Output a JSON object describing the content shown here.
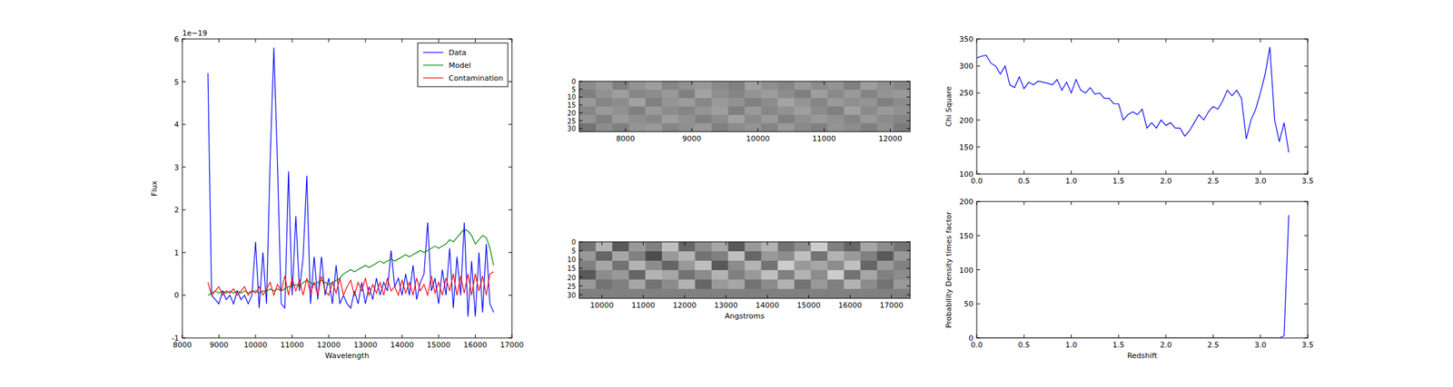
{
  "chart_data": [
    {
      "type": "line",
      "xlabel": "Wavelength",
      "ylabel": "Flux",
      "offset_text": "1e−19",
      "x": [
        8700,
        8800,
        8900,
        9000,
        9100,
        9200,
        9300,
        9400,
        9500,
        9600,
        9700,
        9800,
        9900,
        10000,
        10100,
        10200,
        10300,
        10400,
        10500,
        10600,
        10700,
        10800,
        10900,
        11000,
        11100,
        11200,
        11300,
        11400,
        11500,
        11600,
        11700,
        11800,
        11900,
        12000,
        12100,
        12200,
        12300,
        12400,
        12500,
        12600,
        12700,
        12800,
        12900,
        13000,
        13100,
        13200,
        13300,
        13400,
        13500,
        13600,
        13700,
        13800,
        13900,
        14000,
        14100,
        14200,
        14300,
        14400,
        14500,
        14600,
        14700,
        14800,
        14900,
        15000,
        15100,
        15200,
        15300,
        15400,
        15500,
        15600,
        15700,
        15800,
        15900,
        16000,
        16100,
        16200,
        16300,
        16400,
        16500
      ],
      "series": [
        {
          "name": "Data",
          "color": "#0000ff",
          "values": [
            5.2,
            0.0,
            -0.1,
            -0.2,
            0.1,
            -0.1,
            0.0,
            -0.2,
            0.1,
            -0.1,
            0.0,
            -0.2,
            0.0,
            1.25,
            -0.3,
            1.0,
            -0.2,
            3.2,
            5.8,
            3.05,
            -0.2,
            -0.3,
            2.9,
            0.0,
            1.85,
            0.1,
            0.9,
            2.8,
            -0.2,
            0.9,
            -0.1,
            0.9,
            0.0,
            0.4,
            -0.2,
            0.7,
            -0.2,
            0.0,
            -0.2,
            -0.3,
            0.1,
            -0.2,
            0.3,
            -0.2,
            0.2,
            -0.1,
            0.4,
            0.0,
            0.3,
            0.1,
            1.05,
            0.2,
            0.4,
            0.0,
            0.5,
            0.0,
            0.7,
            -0.1,
            0.3,
            0.5,
            1.7,
            0.1,
            0.4,
            -0.2,
            0.6,
            0.0,
            1.1,
            -0.3,
            0.9,
            0.0,
            1.7,
            -0.5,
            0.8,
            -0.5,
            1.0,
            -0.4,
            1.2,
            -0.2,
            -0.4
          ]
        },
        {
          "name": "Model",
          "color": "#008000",
          "values": [
            0.0,
            0.05,
            0.1,
            0.05,
            0.1,
            0.05,
            0.1,
            0.05,
            0.1,
            0.05,
            0.1,
            0.05,
            0.1,
            0.1,
            0.05,
            0.1,
            0.1,
            0.15,
            0.1,
            0.15,
            0.1,
            0.15,
            0.2,
            0.2,
            0.25,
            0.2,
            0.3,
            0.35,
            0.3,
            0.25,
            0.3,
            0.35,
            0.3,
            0.25,
            0.3,
            0.35,
            0.4,
            0.5,
            0.55,
            0.6,
            0.55,
            0.6,
            0.65,
            0.7,
            0.65,
            0.7,
            0.75,
            0.8,
            0.75,
            0.8,
            0.85,
            0.8,
            0.85,
            0.9,
            0.95,
            0.9,
            0.95,
            1.0,
            1.05,
            1.0,
            1.05,
            1.1,
            1.15,
            1.1,
            1.15,
            1.2,
            1.3,
            1.25,
            1.35,
            1.45,
            1.55,
            1.5,
            1.4,
            1.2,
            1.3,
            1.4,
            1.35,
            1.1,
            0.7
          ]
        },
        {
          "name": "Contamination",
          "color": "#ff0000",
          "values": [
            0.3,
            0.0,
            0.1,
            0.2,
            0.0,
            0.1,
            0.05,
            0.15,
            0.0,
            0.1,
            0.2,
            0.0,
            0.1,
            0.05,
            0.2,
            0.0,
            0.15,
            0.3,
            0.0,
            0.25,
            0.1,
            0.45,
            0.0,
            0.4,
            0.1,
            0.35,
            0.0,
            0.4,
            0.05,
            0.3,
            0.0,
            0.45,
            0.1,
            0.0,
            0.3,
            0.05,
            0.4,
            0.0,
            0.2,
            0.35,
            0.0,
            0.3,
            0.1,
            0.4,
            0.0,
            0.25,
            0.05,
            0.3,
            0.0,
            0.4,
            0.1,
            0.2,
            0.0,
            0.35,
            0.05,
            0.3,
            0.0,
            0.4,
            0.1,
            0.25,
            0.0,
            0.45,
            0.05,
            0.3,
            0.0,
            0.4,
            0.1,
            0.5,
            0.0,
            0.45,
            0.05,
            0.5,
            0.0,
            0.5,
            0.1,
            0.45,
            0.0,
            0.5,
            0.55
          ]
        }
      ],
      "xlim": [
        8000,
        17000
      ],
      "xticks": [
        8000,
        9000,
        10000,
        11000,
        12000,
        13000,
        14000,
        15000,
        16000,
        17000
      ],
      "ylim": [
        -1,
        6
      ],
      "yticks": [
        -1,
        0,
        1,
        2,
        3,
        4,
        5,
        6
      ],
      "legend": "upper right"
    },
    {
      "type": "heatmap",
      "cells": [
        [
          0.55,
          0.6,
          0.5,
          0.58,
          0.62,
          0.52,
          0.57,
          0.6,
          0.54,
          0.5,
          0.63,
          0.56,
          0.52,
          0.6,
          0.55,
          0.58,
          0.5,
          0.62,
          0.57,
          0.53
        ],
        [
          0.5,
          0.57,
          0.62,
          0.53,
          0.55,
          0.6,
          0.5,
          0.64,
          0.56,
          0.52,
          0.58,
          0.61,
          0.55,
          0.5,
          0.62,
          0.54,
          0.6,
          0.52,
          0.58,
          0.6
        ],
        [
          0.6,
          0.52,
          0.55,
          0.63,
          0.5,
          0.58,
          0.61,
          0.53,
          0.6,
          0.57,
          0.5,
          0.55,
          0.64,
          0.58,
          0.52,
          0.6,
          0.56,
          0.58,
          0.5,
          0.55
        ],
        [
          0.53,
          0.6,
          0.57,
          0.5,
          0.6,
          0.55,
          0.52,
          0.58,
          0.62,
          0.5,
          0.6,
          0.53,
          0.57,
          0.62,
          0.55,
          0.5,
          0.63,
          0.54,
          0.6,
          0.57
        ],
        [
          0.58,
          0.5,
          0.6,
          0.56,
          0.53,
          0.62,
          0.57,
          0.5,
          0.55,
          0.63,
          0.54,
          0.6,
          0.5,
          0.56,
          0.6,
          0.57,
          0.52,
          0.6,
          0.55,
          0.52
        ],
        [
          0.45,
          0.55,
          0.5,
          0.58,
          0.6,
          0.52,
          0.56,
          0.6,
          0.5,
          0.55,
          0.58,
          0.52,
          0.6,
          0.54,
          0.5,
          0.58,
          0.55,
          0.5,
          0.57,
          0.48
        ]
      ],
      "xlim": [
        7300,
        12300
      ],
      "xticks": [
        8000,
        9000,
        10000,
        11000,
        12000
      ],
      "ylim": [
        32,
        0
      ],
      "yticks": [
        0,
        5,
        10,
        15,
        20,
        25,
        30
      ]
    },
    {
      "type": "heatmap",
      "xlabel": "Angstroms",
      "cells": [
        [
          0.45,
          0.7,
          0.35,
          0.6,
          0.5,
          0.75,
          0.4,
          0.55,
          0.65,
          0.35,
          0.6,
          0.7,
          0.45,
          0.55,
          0.8,
          0.5,
          0.4,
          0.65,
          0.55,
          0.45
        ],
        [
          0.6,
          0.4,
          0.65,
          0.5,
          0.3,
          0.6,
          0.7,
          0.45,
          0.5,
          0.75,
          0.4,
          0.6,
          0.55,
          0.75,
          0.45,
          0.7,
          0.6,
          0.5,
          0.35,
          0.6
        ],
        [
          0.5,
          0.65,
          0.45,
          0.7,
          0.55,
          0.4,
          0.6,
          0.75,
          0.35,
          0.55,
          0.7,
          0.45,
          0.8,
          0.6,
          0.65,
          0.55,
          0.75,
          0.4,
          0.6,
          0.5
        ],
        [
          0.35,
          0.55,
          0.6,
          0.4,
          0.7,
          0.65,
          0.45,
          0.55,
          0.7,
          0.5,
          0.6,
          0.75,
          0.5,
          0.7,
          0.55,
          0.8,
          0.45,
          0.65,
          0.5,
          0.55
        ],
        [
          0.6,
          0.45,
          0.5,
          0.65,
          0.45,
          0.55,
          0.7,
          0.4,
          0.6,
          0.65,
          0.45,
          0.55,
          0.7,
          0.45,
          0.6,
          0.5,
          0.7,
          0.55,
          0.45,
          0.6
        ],
        [
          0.5,
          0.5,
          0.5,
          0.5,
          0.5,
          0.5,
          0.5,
          0.5,
          0.5,
          0.5,
          0.5,
          0.5,
          0.5,
          0.5,
          0.5,
          0.5,
          0.5,
          0.5,
          0.5,
          0.5
        ]
      ],
      "xlim": [
        9450,
        17450
      ],
      "xticks": [
        10000,
        11000,
        12000,
        13000,
        14000,
        15000,
        16000,
        17000
      ],
      "ylim": [
        32,
        0
      ],
      "yticks": [
        0,
        5,
        10,
        15,
        20,
        25,
        30
      ]
    },
    {
      "type": "line",
      "ylabel": "Chi Square",
      "x": [
        0,
        0.05,
        0.1,
        0.15,
        0.2,
        0.25,
        0.3,
        0.35,
        0.4,
        0.45,
        0.5,
        0.55,
        0.6,
        0.65,
        0.7,
        0.75,
        0.8,
        0.85,
        0.9,
        0.95,
        1.0,
        1.05,
        1.1,
        1.15,
        1.2,
        1.25,
        1.3,
        1.35,
        1.4,
        1.45,
        1.5,
        1.55,
        1.6,
        1.65,
        1.7,
        1.75,
        1.8,
        1.85,
        1.9,
        1.95,
        2.0,
        2.05,
        2.1,
        2.15,
        2.2,
        2.25,
        2.3,
        2.35,
        2.4,
        2.45,
        2.5,
        2.55,
        2.6,
        2.65,
        2.7,
        2.75,
        2.8,
        2.85,
        2.9,
        2.95,
        3.0,
        3.05,
        3.1,
        3.15,
        3.2,
        3.25,
        3.3
      ],
      "series": [
        {
          "color": "#0000ff",
          "values": [
            315,
            318,
            320,
            305,
            300,
            285,
            300,
            265,
            260,
            280,
            258,
            270,
            265,
            272,
            270,
            268,
            265,
            275,
            255,
            270,
            250,
            275,
            255,
            250,
            260,
            248,
            250,
            240,
            240,
            230,
            230,
            200,
            210,
            215,
            210,
            220,
            185,
            195,
            185,
            200,
            190,
            195,
            185,
            185,
            170,
            180,
            195,
            210,
            200,
            215,
            225,
            220,
            235,
            255,
            245,
            255,
            240,
            165,
            200,
            220,
            250,
            285,
            335,
            200,
            160,
            195,
            140
          ]
        }
      ],
      "xlim": [
        0,
        3.5
      ],
      "xticks": [
        {
          "value": 0,
          "label": "0.0"
        },
        0.5,
        {
          "value": 1,
          "label": "1.0"
        },
        1.5,
        {
          "value": 2,
          "label": "2.0"
        },
        2.5,
        {
          "value": 3,
          "label": "3.0"
        },
        3.5
      ],
      "ylim": [
        100,
        350
      ],
      "yticks": [
        100,
        150,
        200,
        250,
        300,
        350
      ]
    },
    {
      "type": "line",
      "xlabel": "Redshift",
      "ylabel": "Probability Density times factor",
      "x": [
        0,
        0.05,
        0.1,
        0.15,
        0.2,
        0.25,
        0.3,
        0.35,
        0.4,
        0.45,
        0.5,
        0.55,
        0.6,
        0.65,
        0.7,
        0.75,
        0.8,
        0.85,
        0.9,
        0.95,
        1.0,
        1.05,
        1.1,
        1.15,
        1.2,
        1.25,
        1.3,
        1.35,
        1.4,
        1.45,
        1.5,
        1.55,
        1.6,
        1.65,
        1.7,
        1.75,
        1.8,
        1.85,
        1.9,
        1.95,
        2.0,
        2.05,
        2.1,
        2.15,
        2.2,
        2.25,
        2.3,
        2.35,
        2.4,
        2.45,
        2.5,
        2.55,
        2.6,
        2.65,
        2.7,
        2.75,
        2.8,
        2.85,
        2.9,
        2.95,
        3.0,
        3.05,
        3.1,
        3.15,
        3.2,
        3.25,
        3.3
      ],
      "series": [
        {
          "color": "#0000ff",
          "values": [
            0,
            0,
            0,
            0,
            0,
            0,
            0,
            0,
            0,
            0,
            0,
            0,
            0,
            0,
            0,
            0,
            0,
            0,
            0,
            0,
            0,
            0,
            0,
            0,
            0,
            0,
            0,
            0,
            0,
            0,
            0,
            0,
            0,
            0,
            0,
            0,
            0,
            0,
            0,
            0,
            0,
            0,
            0,
            0,
            0,
            0,
            0,
            0,
            0,
            0,
            0,
            0,
            0,
            0,
            0,
            0,
            0,
            0,
            0,
            0,
            0,
            0,
            0,
            0,
            0,
            3,
            180
          ]
        }
      ],
      "xlim": [
        0,
        3.5
      ],
      "xticks": [
        {
          "value": 0,
          "label": "0.0"
        },
        0.5,
        {
          "value": 1,
          "label": "1.0"
        },
        1.5,
        {
          "value": 2,
          "label": "2.0"
        },
        2.5,
        {
          "value": 3,
          "label": "3.0"
        },
        3.5
      ],
      "ylim": [
        0,
        200
      ],
      "yticks": [
        0,
        50,
        100,
        150,
        200
      ]
    }
  ]
}
